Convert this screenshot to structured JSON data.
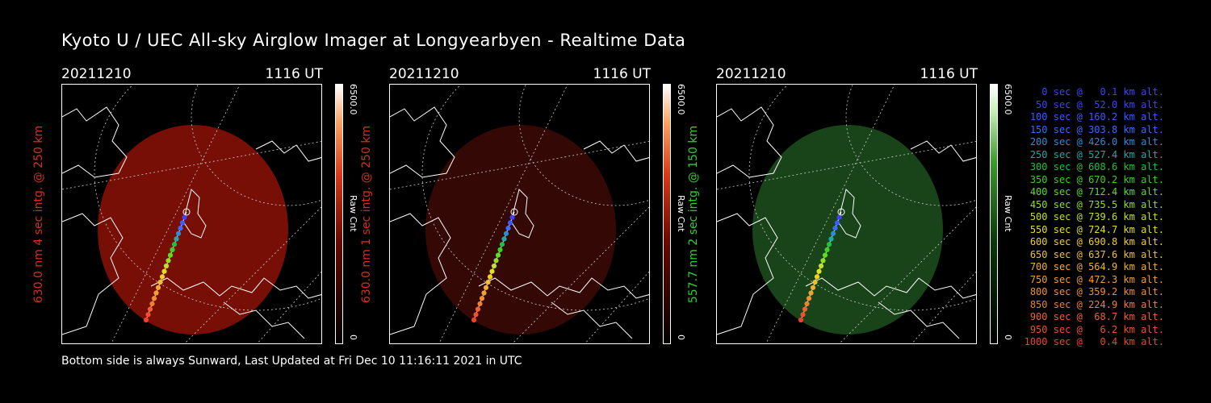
{
  "title": "Kyoto U / UEC All-sky Airglow Imager at Longyearbyen - Realtime Data",
  "footer": "Bottom side is always Sunward, Last Updated at Fri Dec 10 11:16:11 2021 in UTC",
  "panels": [
    {
      "date": "20211210",
      "time": "1116 UT",
      "ylabel": "630.0 nm 4 sec intg. @ 250 km",
      "cbar_max": "6500.0",
      "cbar_unit": "Raw Cnt",
      "cbar_min": "0",
      "label_color": "#d4301c",
      "glow_color": "#8c1208",
      "glow_opacity": 0.85
    },
    {
      "date": "20211210",
      "time": "1116 UT",
      "ylabel": "630.0 nm 1 sec intg. @ 250 km",
      "cbar_max": "6500.0",
      "cbar_unit": "Raw Cnt",
      "cbar_min": "0",
      "label_color": "#d4301c",
      "glow_color": "#3a0906",
      "glow_opacity": 0.9
    },
    {
      "date": "20211210",
      "time": "1116 UT",
      "ylabel": "557.7 nm 2 sec intg. @ 150 km",
      "cbar_max": "6500.0",
      "cbar_unit": "Raw Cnt",
      "cbar_min": "0",
      "label_color": "#2fd02f",
      "glow_color": "#1c4a1c",
      "glow_opacity": 0.9
    }
  ],
  "legend": [
    {
      "text": "0 sec @   0.1 km alt.",
      "color": "#4040ff"
    },
    {
      "text": "50 sec @  52.0 km alt.",
      "color": "#4040ff"
    },
    {
      "text": "100 sec @ 160.2 km alt.",
      "color": "#3a5cff"
    },
    {
      "text": "150 sec @ 303.8 km alt.",
      "color": "#3a6cff"
    },
    {
      "text": "200 sec @ 426.0 km alt.",
      "color": "#2a8cd8"
    },
    {
      "text": "250 sec @ 527.4 km alt.",
      "color": "#20a8a8"
    },
    {
      "text": "300 sec @ 608.6 km alt.",
      "color": "#20c040"
    },
    {
      "text": "350 sec @ 670.2 km alt.",
      "color": "#40d020"
    },
    {
      "text": "400 sec @ 712.4 km alt.",
      "color": "#60dc20"
    },
    {
      "text": "450 sec @ 735.5 km alt.",
      "color": "#90e020"
    },
    {
      "text": "500 sec @ 739.6 km alt.",
      "color": "#c0e020"
    },
    {
      "text": "550 sec @ 724.7 km alt.",
      "color": "#e0e020"
    },
    {
      "text": "600 sec @ 690.8 km alt.",
      "color": "#f0d020"
    },
    {
      "text": "650 sec @ 637.6 km alt.",
      "color": "#f0c030"
    },
    {
      "text": "700 sec @ 564.9 km alt.",
      "color": "#f0b030"
    },
    {
      "text": "750 sec @ 472.3 km alt.",
      "color": "#f0a030"
    },
    {
      "text": "800 sec @ 359.2 km alt.",
      "color": "#f09030"
    },
    {
      "text": "850 sec @ 224.9 km alt.",
      "color": "#f08030"
    },
    {
      "text": "900 sec @  68.7 km alt.",
      "color": "#f06030"
    },
    {
      "text": "950 sec @   6.2 km alt.",
      "color": "#f05030"
    },
    {
      "text": "1000 sec @   0.4 km alt.",
      "color": "#f04030"
    }
  ]
}
